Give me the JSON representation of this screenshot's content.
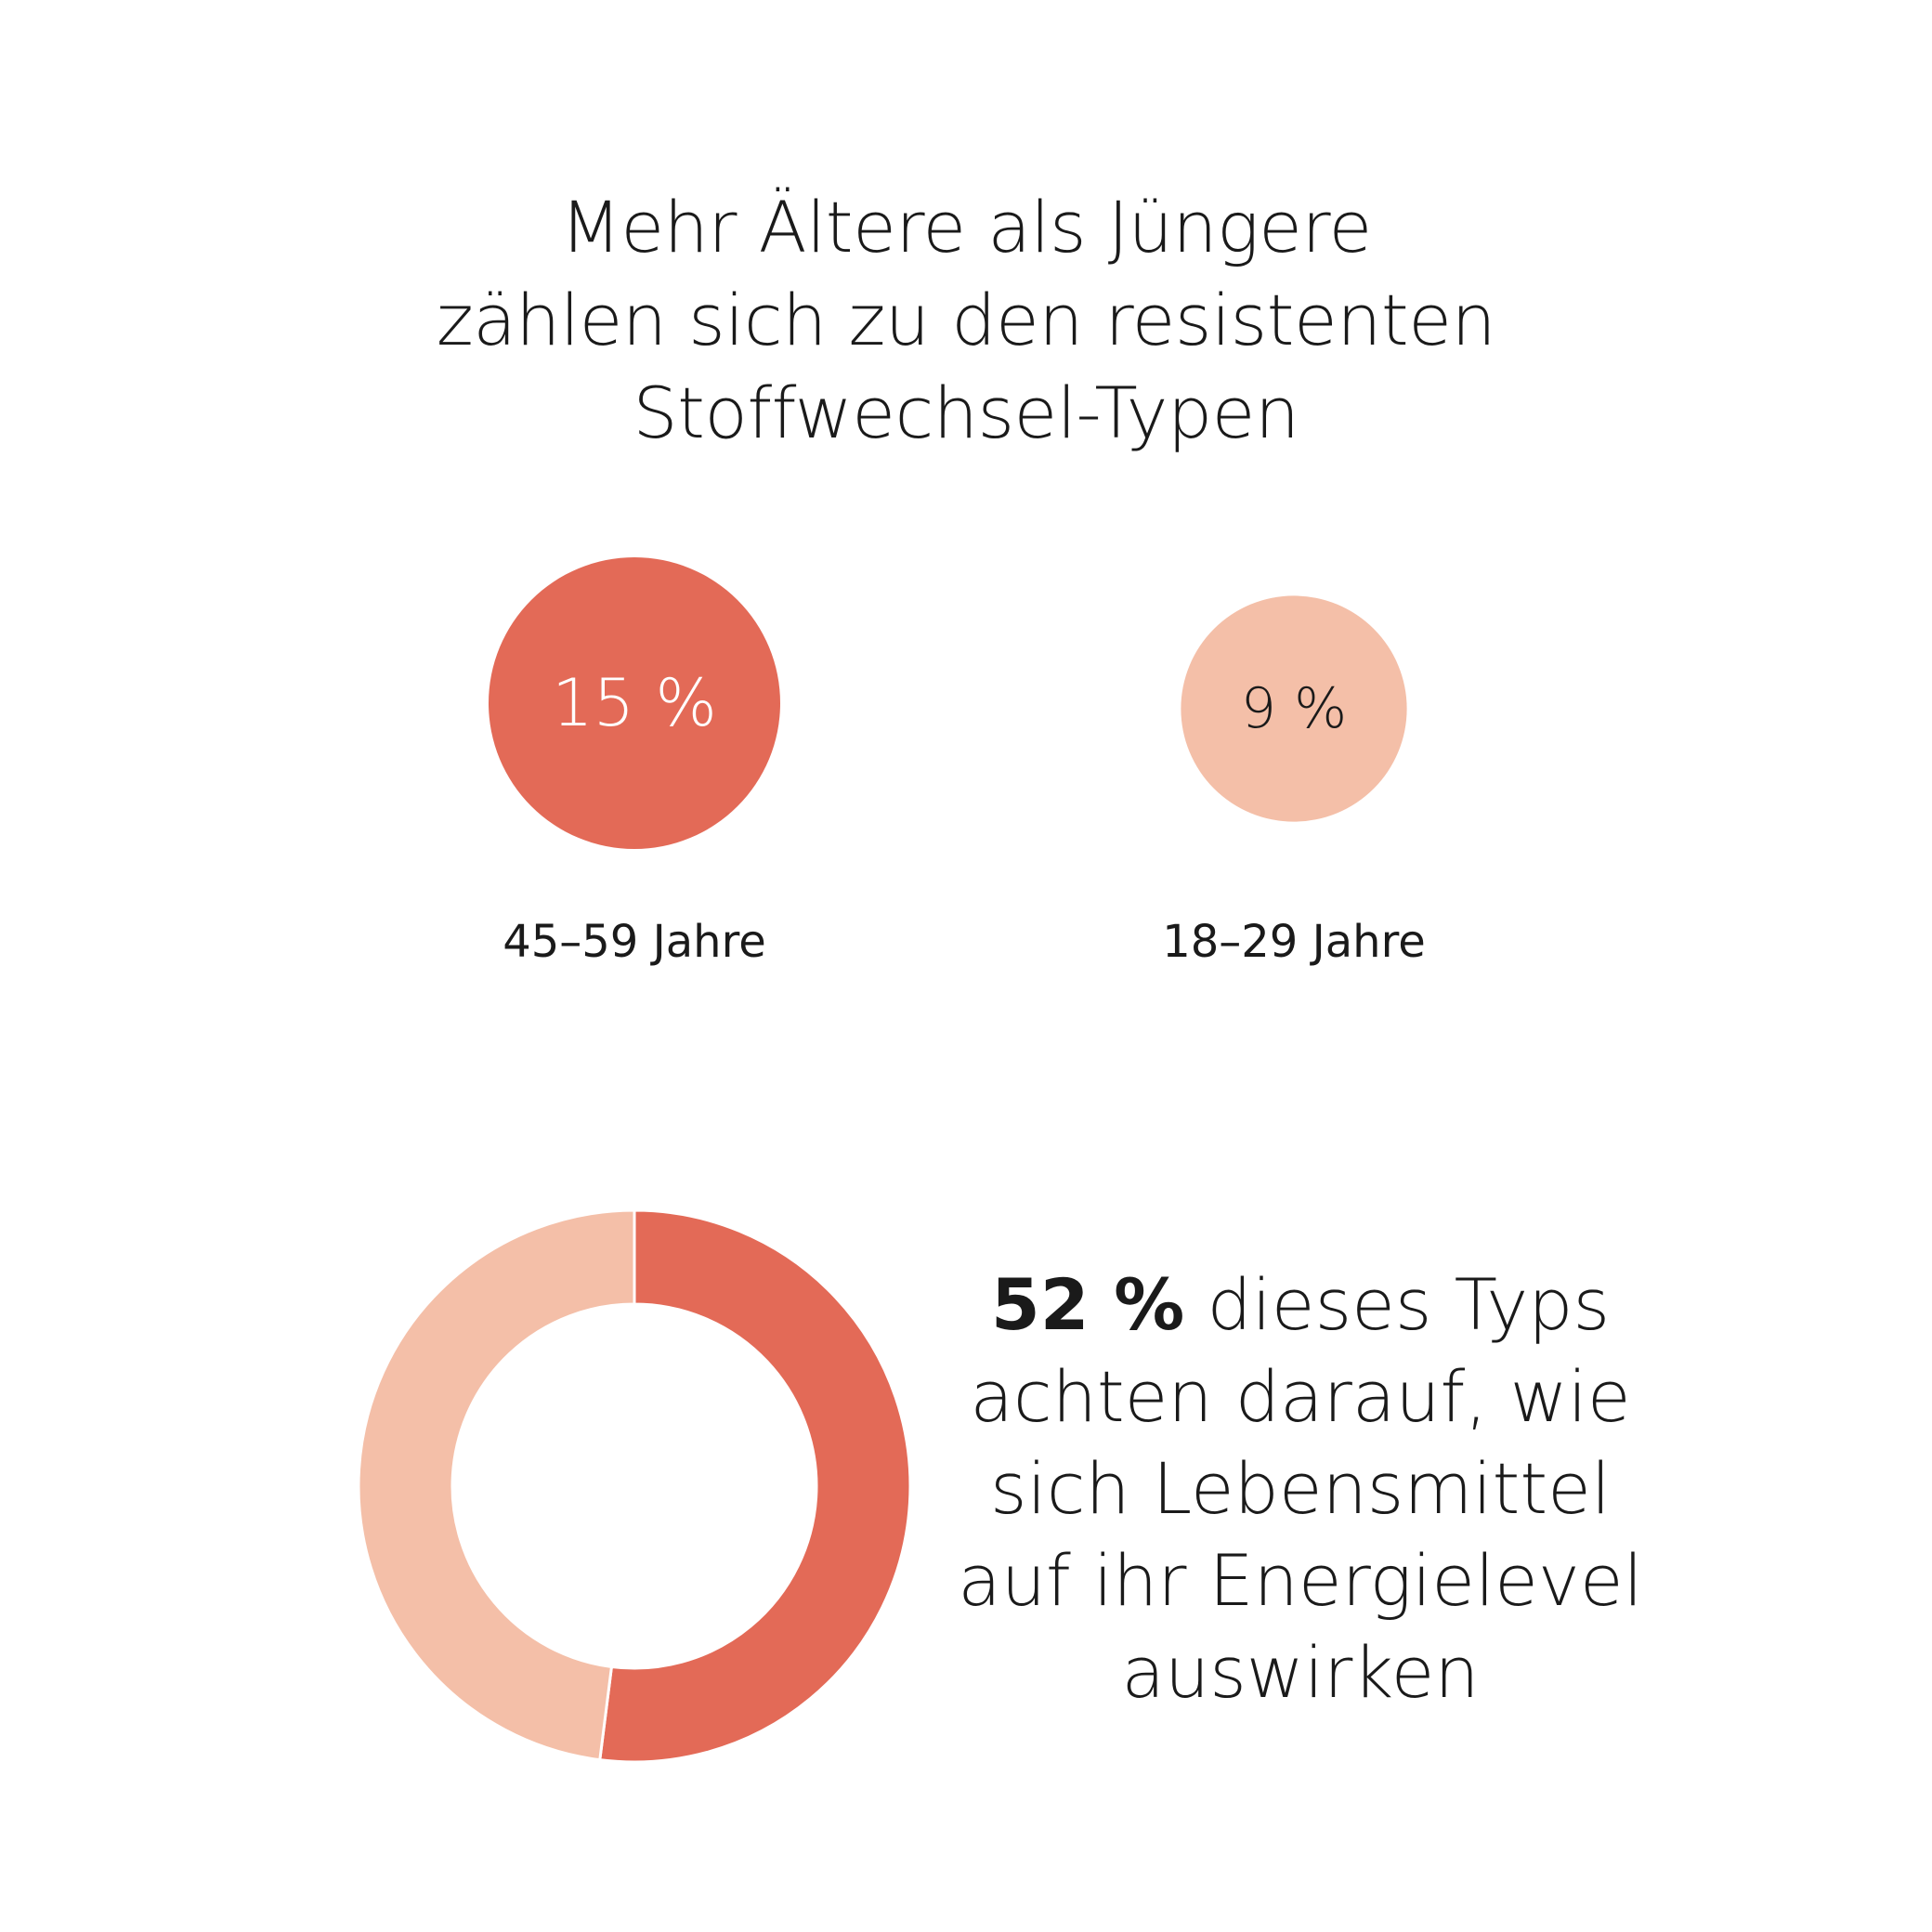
{
  "colors": {
    "primary": "#E36A57",
    "secondary": "#F4BFA8",
    "text": "#1a1a1a",
    "value_on_primary": "#ffffff"
  },
  "chart_data": [
    {
      "type": "bubble",
      "title": "Mehr Ältere als Jüngere zählen sich zu den resistenten Stoffwechsel-Typen",
      "title_lines": [
        "Mehr Ältere als Jüngere",
        "zählen sich zu den resistenten",
        "Stoffwechsel-Typen"
      ],
      "unit": "%",
      "items": [
        {
          "label": "45–59 Jahre",
          "value": 15,
          "value_label": "15 %",
          "color": "primary"
        },
        {
          "label": "18–29 Jahre",
          "value": 9,
          "value_label": "9 %",
          "color": "secondary"
        }
      ]
    },
    {
      "type": "pie",
      "variant": "donut",
      "unit": "%",
      "slices": [
        {
          "value": 52,
          "color": "primary"
        },
        {
          "value": 48,
          "color": "secondary"
        }
      ],
      "annotation": {
        "highlight": "52 %",
        "lines": [
          "dieses Typs",
          "achten darauf, wie",
          "sich Lebensmittel",
          "auf ihr Energielevel",
          "auswirken"
        ]
      }
    }
  ]
}
